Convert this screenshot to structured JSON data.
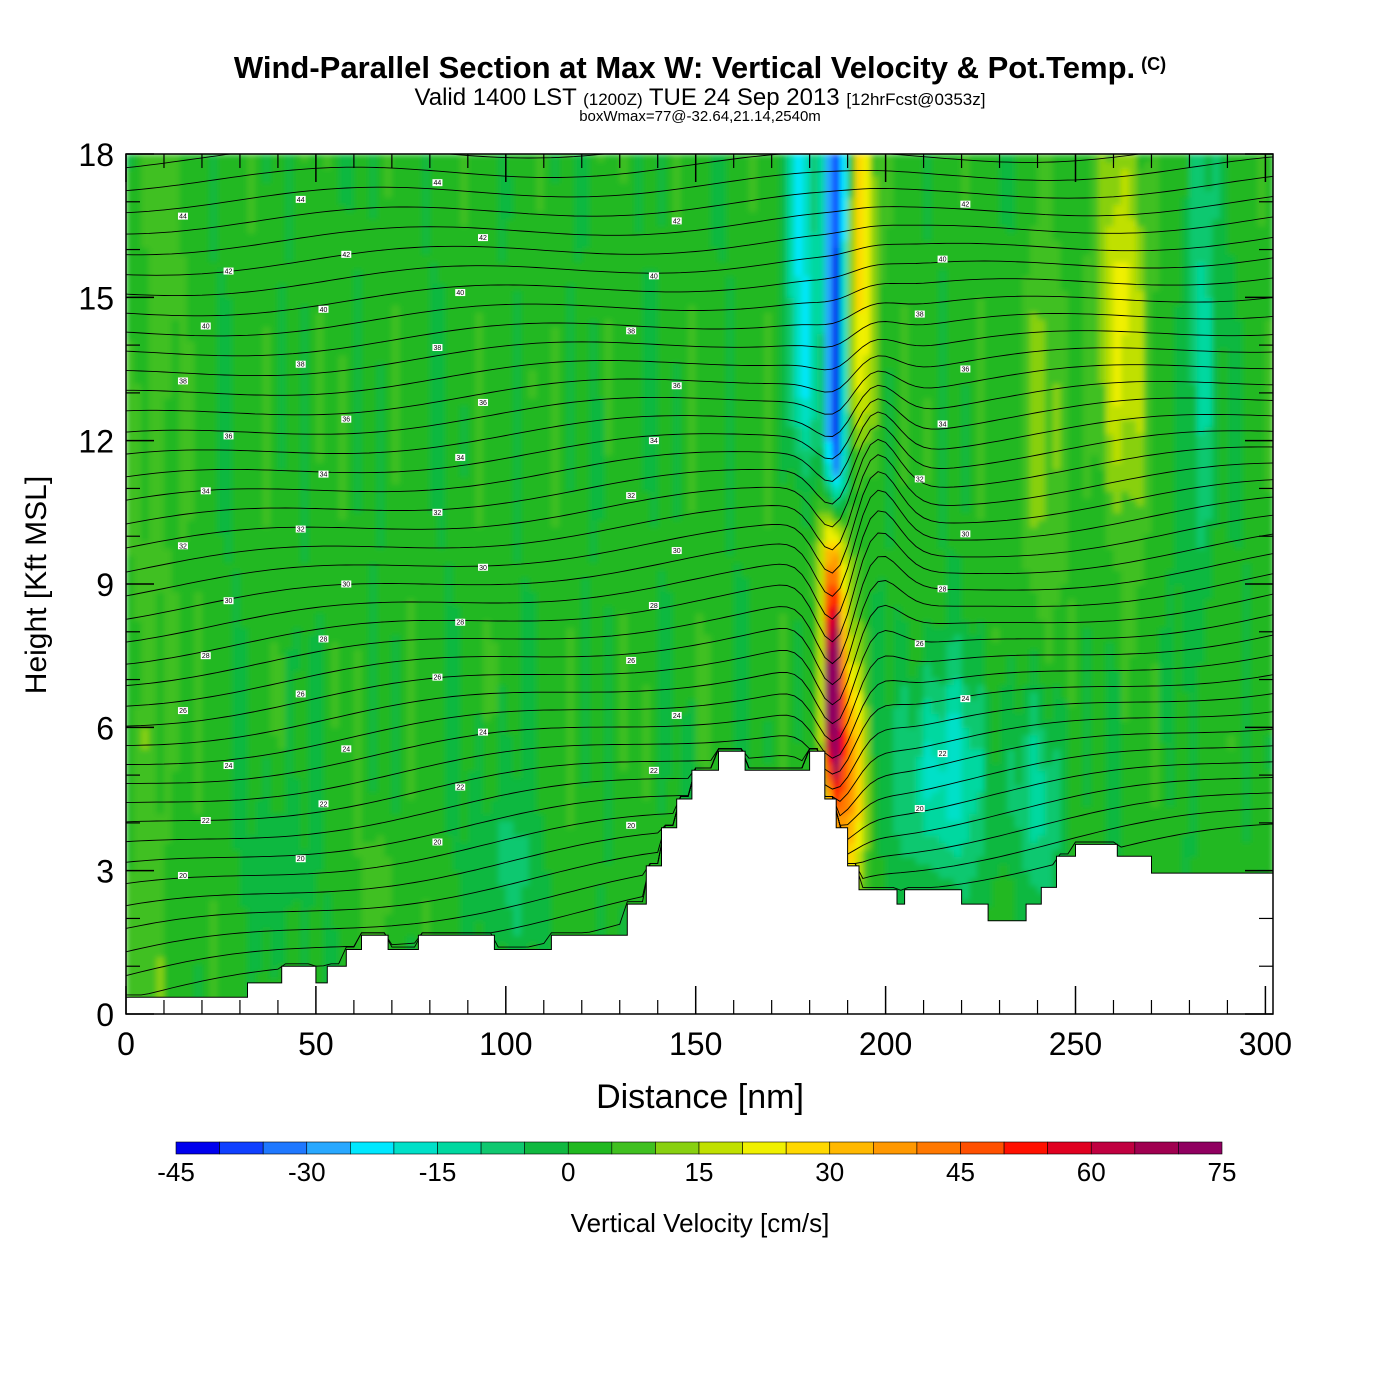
{
  "header": {
    "title": "Wind-Parallel Section at Max W: Vertical Velocity & Pot.Temp.",
    "copyright": "(C)",
    "valid_prefix": "Valid 1400 LST",
    "valid_zulu": "(1200Z)",
    "valid_date": "TUE 24 Sep 2013",
    "forecast": "[12hrFcst@0353z]",
    "box_info": "boxWmax=77@-32.64,21.14,2540m"
  },
  "chart_data": {
    "type": "heatmap",
    "title": "Wind-Parallel Section at Max W: Vertical Velocity & Pot.Temp.",
    "xlabel": "Distance [nm]",
    "ylabel": "Height [Kft MSL]",
    "xlim": [
      0,
      302
    ],
    "ylim": [
      0,
      18
    ],
    "x_ticks": [
      0,
      50,
      100,
      150,
      200,
      250,
      300
    ],
    "y_ticks": [
      0,
      3,
      6,
      9,
      12,
      15,
      18
    ],
    "colorbar": {
      "label": "Vertical Velocity [cm/s]",
      "ticks": [
        -45,
        -30,
        -15,
        0,
        15,
        30,
        45,
        60,
        75
      ],
      "levels": [
        -45,
        -40,
        -35,
        -30,
        -25,
        -20,
        -15,
        -10,
        -5,
        0,
        5,
        10,
        15,
        20,
        25,
        30,
        35,
        40,
        45,
        50,
        55,
        60,
        65,
        70,
        75
      ],
      "colors": [
        "#0000ee",
        "#1040ff",
        "#1f78ff",
        "#28a8ff",
        "#00e8ff",
        "#00e0c8",
        "#00d8a0",
        "#10c870",
        "#10b840",
        "#20b820",
        "#40c020",
        "#88d010",
        "#c0e000",
        "#f0f000",
        "#ffd800",
        "#ffb800",
        "#ff9800",
        "#ff7800",
        "#ff5000",
        "#ff1000",
        "#e00020",
        "#c00040",
        "#a00050",
        "#900060"
      ]
    },
    "terrain_top_kft": [
      [
        0,
        0.35
      ],
      [
        32,
        0.35
      ],
      [
        32,
        0.65
      ],
      [
        41,
        0.65
      ],
      [
        41,
        1.0
      ],
      [
        50,
        1.0
      ],
      [
        50,
        0.65
      ],
      [
        53,
        0.65
      ],
      [
        53,
        1.0
      ],
      [
        58,
        1.0
      ],
      [
        58,
        1.35
      ],
      [
        62,
        1.35
      ],
      [
        62,
        1.65
      ],
      [
        69,
        1.65
      ],
      [
        69,
        1.35
      ],
      [
        77,
        1.35
      ],
      [
        77,
        1.65
      ],
      [
        97,
        1.65
      ],
      [
        97,
        1.35
      ],
      [
        112,
        1.35
      ],
      [
        112,
        1.65
      ],
      [
        132,
        1.65
      ],
      [
        132,
        2.3
      ],
      [
        137,
        2.3
      ],
      [
        137,
        3.1
      ],
      [
        141,
        3.1
      ],
      [
        141,
        3.9
      ],
      [
        145,
        3.9
      ],
      [
        145,
        4.5
      ],
      [
        149,
        4.5
      ],
      [
        149,
        5.1
      ],
      [
        156,
        5.1
      ],
      [
        156,
        5.5
      ],
      [
        163,
        5.5
      ],
      [
        163,
        5.1
      ],
      [
        180,
        5.1
      ],
      [
        180,
        5.5
      ],
      [
        184,
        5.5
      ],
      [
        184,
        4.5
      ],
      [
        187,
        4.5
      ],
      [
        187,
        3.9
      ],
      [
        190,
        3.9
      ],
      [
        190,
        3.1
      ],
      [
        193,
        3.1
      ],
      [
        193,
        2.6
      ],
      [
        203,
        2.6
      ],
      [
        203,
        2.3
      ],
      [
        205,
        2.3
      ],
      [
        205,
        2.6
      ],
      [
        220,
        2.6
      ],
      [
        220,
        2.3
      ],
      [
        227,
        2.3
      ],
      [
        227,
        1.95
      ],
      [
        237,
        1.95
      ],
      [
        237,
        2.3
      ],
      [
        241,
        2.3
      ],
      [
        241,
        2.65
      ],
      [
        245,
        2.65
      ],
      [
        245,
        3.3
      ],
      [
        250,
        3.3
      ],
      [
        250,
        3.55
      ],
      [
        261,
        3.55
      ],
      [
        261,
        3.3
      ],
      [
        270,
        3.3
      ],
      [
        270,
        2.95
      ],
      [
        302,
        2.95
      ]
    ],
    "vertical_velocity_features": [
      {
        "name": "downdraft core",
        "x": [
          183,
          191
        ],
        "z": [
          9.5,
          18
        ],
        "peak_cm_s": -45
      },
      {
        "name": "updraft core",
        "x": [
          182,
          192
        ],
        "z": [
          4.5,
          9
        ],
        "peak_cm_s": 77
      },
      {
        "name": "updraft aloft",
        "x": [
          190,
          200
        ],
        "z": [
          12,
          18
        ],
        "peak_cm_s": 30
      },
      {
        "name": "downdraft lee",
        "x": [
          205,
          250
        ],
        "z": [
          2.5,
          7
        ],
        "peak_cm_s": -20
      }
    ],
    "isentrope_labels": [
      "20",
      "22",
      "24",
      "26",
      "28",
      "30",
      "32",
      "34",
      "36",
      "38",
      "40",
      "42",
      "44"
    ]
  }
}
